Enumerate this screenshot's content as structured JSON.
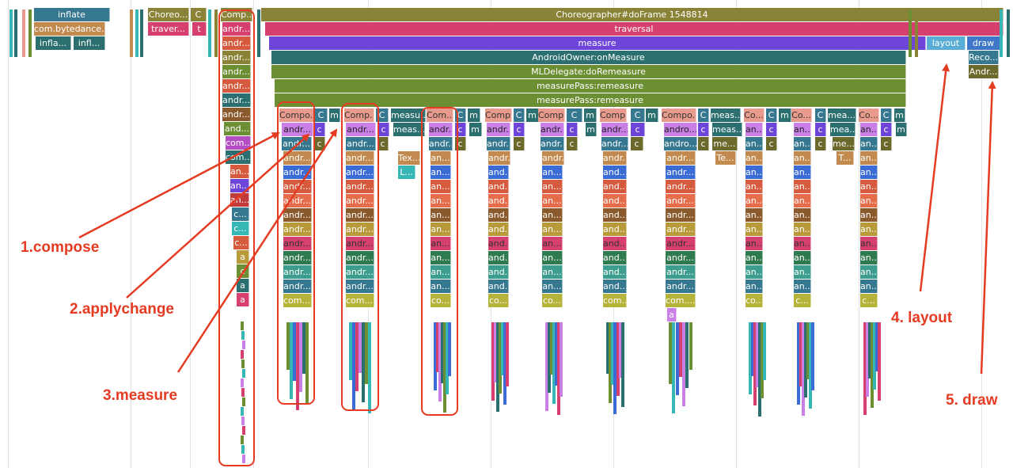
{
  "colors": {
    "olive": "#8a8236",
    "pink": "#d6406e",
    "purple": "#6d45d9",
    "teal": "#2b6f70",
    "green": "#6d8f33",
    "salmon": "#e89b8c",
    "lavender": "#c97fe6",
    "steel": "#36788f",
    "tan": "#c28a4e",
    "cyan": "#36b6b4",
    "blue": "#3b6bd4",
    "magenta": "#b34ec2",
    "darkolive": "#6b6a2c",
    "annotation": "#e53b22"
  },
  "top": {
    "inflate": "inflate",
    "bytedance": "com.bytedance...",
    "infla": "infla...",
    "infl": "infl...",
    "choreo": "Choreo...",
    "c": "C",
    "traver": "traver...",
    "t": "t",
    "comp": "Comp...",
    "doframe": "Choreographer#doFrame 1548814",
    "traversal": "traversal",
    "measure": "measure",
    "layout": "layout",
    "draw": "draw",
    "owner": "AndroidOwner:onMeasure",
    "mldelegate": "MLDelegate:doRemeasure",
    "pass1": "measurePass:remeasure",
    "pass2": "measurePass:remeasure",
    "reco": "Reco...",
    "andr": "Andr..."
  },
  "compose_column": [
    "andr...",
    "andr...",
    "andr...",
    "andr...",
    "andr...",
    "andr...",
    "andr...",
    "and...",
    "com...",
    "com...",
    "an...",
    "an...",
    "an...",
    "c...",
    "c...",
    "c...",
    "a",
    "c",
    "a",
    "a"
  ],
  "row137": [
    "Compo...",
    "C",
    "m",
    "Comp...",
    "C",
    "measu...",
    "Com...",
    "C",
    "m",
    "Comp...",
    "C",
    "m",
    "Comp...",
    "C",
    "m",
    "Comp...",
    "C",
    "m",
    "Compo...",
    "C",
    "meas...",
    "Co...",
    "C",
    "m",
    "Co...",
    "C",
    "mea...",
    "Co...",
    "C",
    "m"
  ],
  "row155": [
    "andr...",
    "c",
    "andr...",
    "c",
    "meas...",
    "andr...",
    "c",
    "m",
    "andr...",
    "c",
    "andr...",
    "c",
    "m",
    "andr...",
    "c",
    "andro...",
    "c",
    "meas...",
    "an...",
    "c",
    "an...",
    "c",
    "mea...",
    "an...",
    "c",
    "m"
  ],
  "row173": [
    "andr...",
    "c",
    "andr...",
    "c",
    "andr...",
    "c",
    "andr...",
    "c",
    "andr...",
    "c",
    "andr...",
    "c",
    "andro...",
    "c",
    "me...",
    "an...",
    "c",
    "an...",
    "c",
    "me...",
    "an...",
    "c"
  ],
  "row191": [
    "andr...",
    "andr...",
    "Tex...",
    "an...",
    "andr...",
    "andr...",
    "andr...",
    "andr...",
    "Te...",
    "an...",
    "an...",
    "T...",
    "an..."
  ],
  "row209": [
    "L..."
  ],
  "col_labels": {
    "andr": "andr...",
    "an": "an...",
    "and": "and...",
    "com": "com....",
    "co": "co...",
    "c": "c...",
    "a": "a"
  },
  "annotations": {
    "compose": "1.compose",
    "applychange": "2.applychange",
    "measure": "3.measure",
    "layout": "4. layout",
    "draw": "5. draw"
  }
}
